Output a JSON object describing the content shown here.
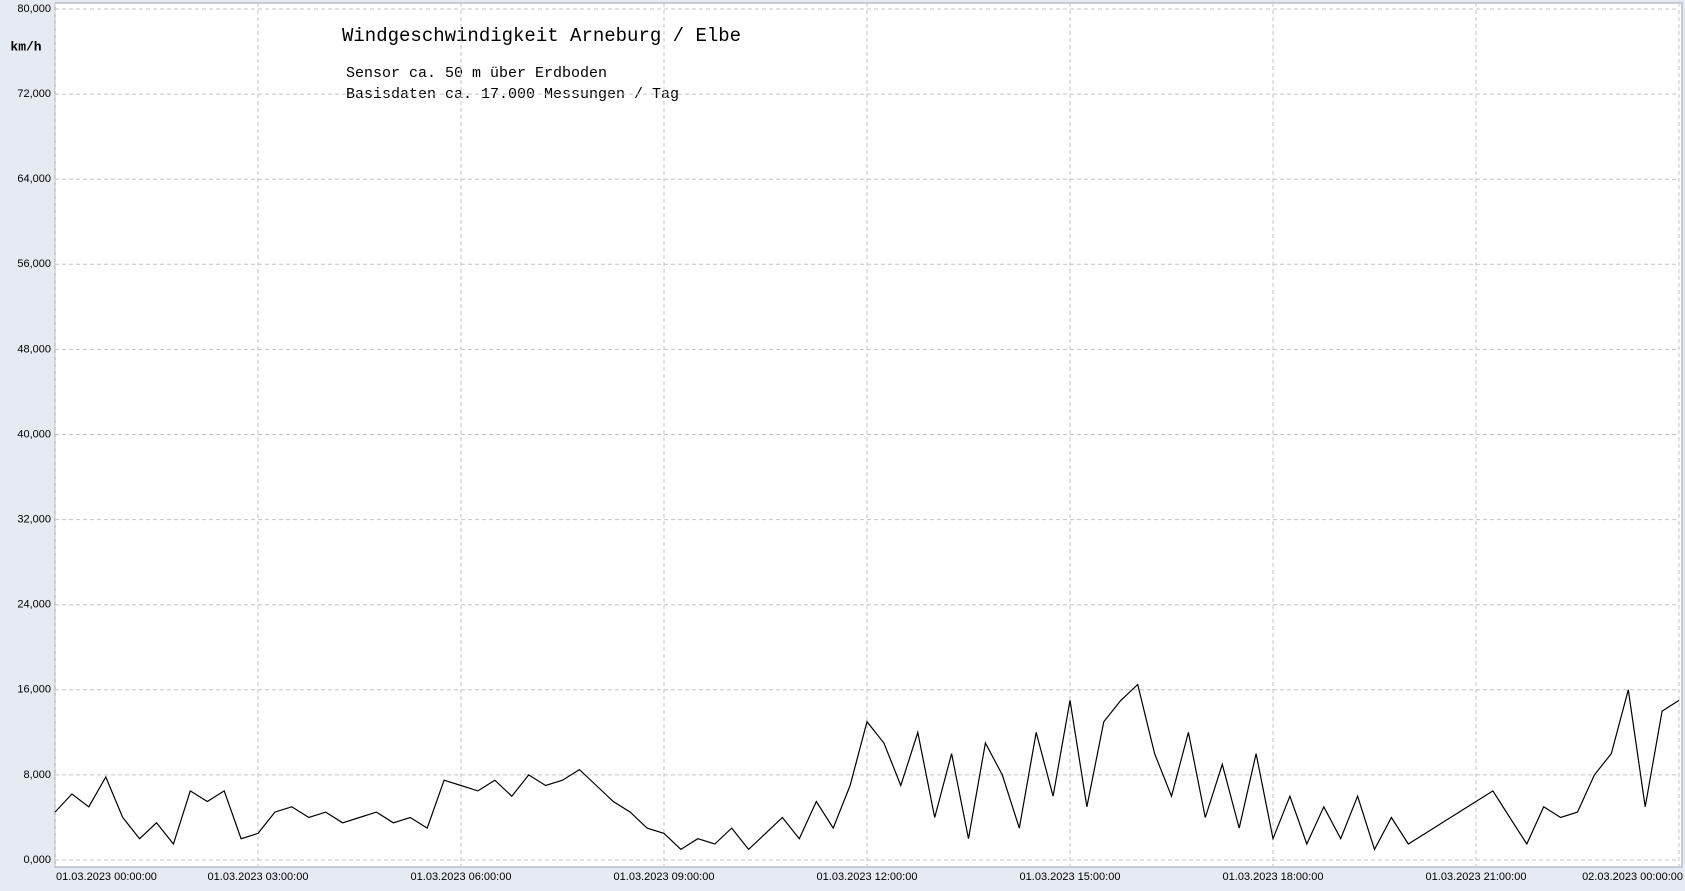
{
  "chart_data": {
    "type": "line",
    "title": "Windgeschwindigkeit  Arneburg / Elbe",
    "annotations": [
      "Sensor ca. 50 m über Erdboden",
      "Basisdaten ca. 17.000 Messungen / Tag"
    ],
    "y_label": "km/h",
    "x": [
      "01.03.2023 00:00:00",
      "01.03.2023 00:15:00",
      "01.03.2023 00:30:00",
      "01.03.2023 00:45:00",
      "01.03.2023 01:00:00",
      "01.03.2023 01:15:00",
      "01.03.2023 01:30:00",
      "01.03.2023 01:45:00",
      "01.03.2023 02:00:00",
      "01.03.2023 02:15:00",
      "01.03.2023 02:30:00",
      "01.03.2023 02:45:00",
      "01.03.2023 03:00:00",
      "01.03.2023 03:15:00",
      "01.03.2023 03:30:00",
      "01.03.2023 03:45:00",
      "01.03.2023 04:00:00",
      "01.03.2023 04:15:00",
      "01.03.2023 04:30:00",
      "01.03.2023 04:45:00",
      "01.03.2023 05:00:00",
      "01.03.2023 05:15:00",
      "01.03.2023 05:30:00",
      "01.03.2023 05:45:00",
      "01.03.2023 06:00:00",
      "01.03.2023 06:15:00",
      "01.03.2023 06:30:00",
      "01.03.2023 06:45:00",
      "01.03.2023 07:00:00",
      "01.03.2023 07:15:00",
      "01.03.2023 07:30:00",
      "01.03.2023 07:45:00",
      "01.03.2023 08:00:00",
      "01.03.2023 08:15:00",
      "01.03.2023 08:30:00",
      "01.03.2023 08:45:00",
      "01.03.2023 09:00:00",
      "01.03.2023 09:15:00",
      "01.03.2023 09:30:00",
      "01.03.2023 09:45:00",
      "01.03.2023 10:00:00",
      "01.03.2023 10:15:00",
      "01.03.2023 10:30:00",
      "01.03.2023 10:45:00",
      "01.03.2023 11:00:00",
      "01.03.2023 11:15:00",
      "01.03.2023 11:30:00",
      "01.03.2023 11:45:00",
      "01.03.2023 12:00:00",
      "01.03.2023 12:15:00",
      "01.03.2023 12:30:00",
      "01.03.2023 12:45:00",
      "01.03.2023 13:00:00",
      "01.03.2023 13:15:00",
      "01.03.2023 13:30:00",
      "01.03.2023 13:45:00",
      "01.03.2023 14:00:00",
      "01.03.2023 14:15:00",
      "01.03.2023 14:30:00",
      "01.03.2023 14:45:00",
      "01.03.2023 15:00:00",
      "01.03.2023 15:15:00",
      "01.03.2023 15:30:00",
      "01.03.2023 15:45:00",
      "01.03.2023 16:00:00",
      "01.03.2023 16:15:00",
      "01.03.2023 16:30:00",
      "01.03.2023 16:45:00",
      "01.03.2023 17:00:00",
      "01.03.2023 17:15:00",
      "01.03.2023 17:30:00",
      "01.03.2023 17:45:00",
      "01.03.2023 18:00:00",
      "01.03.2023 18:15:00",
      "01.03.2023 18:30:00",
      "01.03.2023 18:45:00",
      "01.03.2023 19:00:00",
      "01.03.2023 19:15:00",
      "01.03.2023 19:30:00",
      "01.03.2023 19:45:00",
      "01.03.2023 20:00:00",
      "01.03.2023 20:15:00",
      "01.03.2023 20:30:00",
      "01.03.2023 20:45:00",
      "01.03.2023 21:00:00",
      "01.03.2023 21:15:00",
      "01.03.2023 21:30:00",
      "01.03.2023 21:45:00",
      "01.03.2023 22:00:00",
      "01.03.2023 22:15:00",
      "01.03.2023 22:30:00",
      "01.03.2023 22:45:00",
      "01.03.2023 23:00:00",
      "01.03.2023 23:15:00",
      "01.03.2023 23:30:00",
      "01.03.2023 23:45:00",
      "02.03.2023 00:00:00"
    ],
    "series": [
      {
        "color": "#000000",
        "values": [
          4.5,
          6.2,
          5.0,
          7.8,
          4.0,
          2.0,
          3.5,
          1.5,
          6.5,
          5.5,
          6.5,
          2.0,
          2.5,
          4.5,
          5.0,
          4.0,
          4.5,
          3.5,
          4.0,
          4.5,
          3.5,
          4.0,
          3.0,
          7.5,
          7.0,
          6.5,
          7.5,
          6.0,
          8.0,
          7.0,
          7.5,
          8.5,
          7.0,
          5.5,
          4.5,
          3.0,
          2.5,
          1.0,
          2.0,
          1.5,
          3.0,
          1.0,
          2.5,
          4.0,
          2.0,
          5.5,
          3.0,
          7.0,
          13.0,
          11.0,
          7.0,
          12.0,
          4.0,
          10.0,
          2.0,
          11.0,
          8.0,
          3.0,
          12.0,
          6.0,
          15.0,
          5.0,
          13.0,
          15.0,
          16.5,
          10.0,
          6.0,
          12.0,
          4.0,
          9.0,
          3.0,
          10.0,
          2.0,
          6.0,
          1.5,
          5.0,
          2.0,
          6.0,
          1.0,
          4.0,
          1.5,
          2.5,
          3.5,
          4.5,
          5.5,
          6.5,
          4.0,
          1.5,
          5.0,
          4.0,
          4.5,
          8.0,
          10.0,
          16.0,
          5.0,
          14.0,
          15.0
        ]
      }
    ],
    "xlim": [
      "01.03.2023 00:00:00",
      "02.03.2023 00:00:00"
    ],
    "xticks": [
      "01.03.2023  00:00:00",
      "01.03.2023  03:00:00",
      "01.03.2023  06:00:00",
      "01.03.2023  09:00:00",
      "01.03.2023  12:00:00",
      "01.03.2023  15:00:00",
      "01.03.2023  18:00:00",
      "01.03.2023  21:00:00",
      "02.03.2023  00:00:00"
    ],
    "ylim": [
      0,
      80
    ],
    "yticks": [
      {
        "value": 0,
        "label": "0,000"
      },
      {
        "value": 8,
        "label": "8,000"
      },
      {
        "value": 16,
        "label": "16,000"
      },
      {
        "value": 24,
        "label": "24,000"
      },
      {
        "value": 32,
        "label": "32,000"
      },
      {
        "value": 40,
        "label": "40,000"
      },
      {
        "value": 48,
        "label": "48,000"
      },
      {
        "value": 56,
        "label": "56,000"
      },
      {
        "value": 64,
        "label": "64,000"
      },
      {
        "value": 72,
        "label": "72,000"
      },
      {
        "value": 80,
        "label": "80,000"
      }
    ],
    "grid": true
  }
}
